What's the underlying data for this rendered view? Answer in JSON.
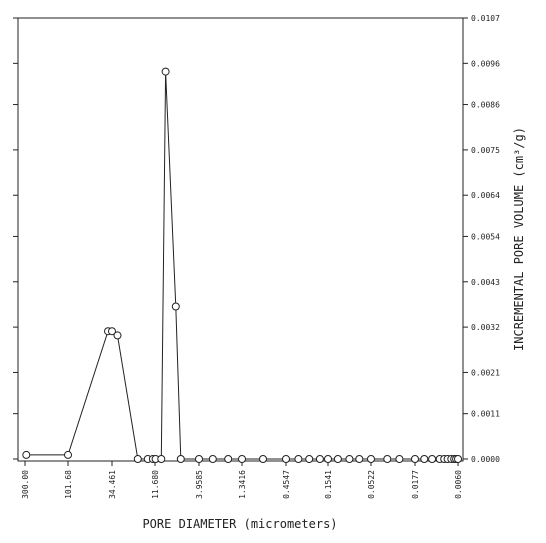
{
  "chart_data": {
    "type": "line",
    "xlabel": "PORE DIAMETER (micrometers)",
    "ylabel": "INCREMENTAL PORE VOLUME (cm³/g)",
    "x_scale": "log",
    "x_reversed": true,
    "xlim": [
      300,
      0.006
    ],
    "ylim": [
      0,
      0.0107
    ],
    "x_ticks": [
      "300.00",
      "101.68",
      "34.461",
      "11.680",
      "3.9585",
      "1.3416",
      "0.4547",
      "0.1541",
      "0.0522",
      "0.0177",
      "0.0060"
    ],
    "x_tick_values": [
      300.0,
      101.68,
      34.461,
      11.68,
      3.9585,
      1.3416,
      0.4547,
      0.1541,
      0.0522,
      0.0177,
      0.006
    ],
    "y_ticks": [
      "0.0000",
      "0.0011",
      "0.0021",
      "0.0032",
      "0.0043",
      "0.0054",
      "0.0064",
      "0.0075",
      "0.0086",
      "0.0096",
      "0.0107"
    ],
    "y_tick_values": [
      0.0,
      0.0011,
      0.0021,
      0.0032,
      0.0043,
      0.0054,
      0.0064,
      0.0075,
      0.0086,
      0.0096,
      0.0107
    ],
    "grid": false,
    "series": [
      {
        "marker": "circle",
        "x": [
          290,
          101.68,
          38,
          34.461,
          30,
          18,
          14,
          12.3,
          11.5,
          10.0,
          9.0,
          7.0,
          6.2,
          3.9585,
          2.8,
          1.9,
          1.3416,
          0.8,
          0.4547,
          0.33,
          0.25,
          0.19,
          0.1541,
          0.12,
          0.09,
          0.07,
          0.0522,
          0.035,
          0.026,
          0.0177,
          0.014,
          0.0115,
          0.0095,
          0.0085,
          0.0078,
          0.0071,
          0.0066,
          0.0063,
          0.006
        ],
        "y": [
          0.0001,
          0.0001,
          0.0031,
          0.0031,
          0.003,
          0.0,
          0.0,
          0.0,
          0.0,
          0.0,
          0.0094,
          0.0037,
          0.0,
          0.0,
          0.0,
          0.0,
          0.0,
          0.0,
          0.0,
          0.0,
          0.0,
          0.0,
          0.0,
          0.0,
          0.0,
          0.0,
          0.0,
          0.0,
          0.0,
          0.0,
          0.0,
          0.0,
          0.0,
          0.0,
          0.0,
          0.0,
          0.0,
          0.0,
          0.0
        ]
      }
    ]
  }
}
